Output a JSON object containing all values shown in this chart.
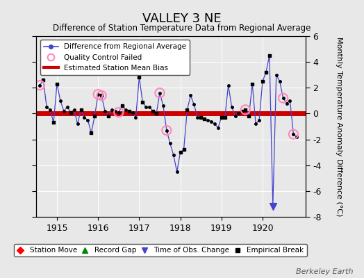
{
  "title": "VALLEY 3 NE",
  "subtitle": "Difference of Station Temperature Data from Regional Average",
  "ylabel": "Monthly Temperature Anomaly Difference (°C)",
  "bias_value": 0.05,
  "background_color": "#e8e8e8",
  "line_color": "#4444cc",
  "marker_color": "#000000",
  "bias_color": "#cc0000",
  "qc_color": "#ff88bb",
  "ylim": [
    -8,
    6
  ],
  "xlim_start": 1914.5,
  "xlim_end": 1921.05,
  "yticks": [
    -8,
    -6,
    -4,
    -2,
    0,
    2,
    4,
    6
  ],
  "xticks": [
    1915,
    1916,
    1917,
    1918,
    1919,
    1920
  ],
  "data_x": [
    1914.583,
    1914.667,
    1914.75,
    1914.833,
    1914.917,
    1915.0,
    1915.083,
    1915.167,
    1915.25,
    1915.333,
    1915.417,
    1915.5,
    1915.583,
    1915.667,
    1915.75,
    1915.833,
    1915.917,
    1916.0,
    1916.083,
    1916.167,
    1916.25,
    1916.333,
    1916.417,
    1916.5,
    1916.583,
    1916.667,
    1916.75,
    1916.833,
    1916.917,
    1917.0,
    1917.083,
    1917.167,
    1917.25,
    1917.333,
    1917.417,
    1917.5,
    1917.583,
    1917.667,
    1917.75,
    1917.833,
    1917.917,
    1918.0,
    1918.083,
    1918.167,
    1918.25,
    1918.333,
    1918.417,
    1918.5,
    1918.583,
    1918.667,
    1918.75,
    1918.833,
    1918.917,
    1919.0,
    1919.083,
    1919.167,
    1919.25,
    1919.333,
    1919.417,
    1919.5,
    1919.583,
    1919.667,
    1919.75,
    1919.833,
    1919.917,
    1920.0,
    1920.083,
    1920.167,
    1920.25,
    1920.333,
    1920.417,
    1920.5,
    1920.583,
    1920.667,
    1920.75,
    1920.833
  ],
  "data_y": [
    2.2,
    2.6,
    0.5,
    0.3,
    -0.7,
    2.3,
    1.0,
    0.2,
    0.5,
    0.1,
    0.3,
    -0.8,
    0.3,
    -0.3,
    -0.5,
    -1.5,
    -0.2,
    1.5,
    1.4,
    0.2,
    -0.2,
    0.3,
    0.2,
    0.1,
    0.6,
    0.3,
    0.2,
    0.1,
    -0.3,
    2.8,
    0.9,
    0.5,
    0.5,
    0.2,
    0.0,
    1.6,
    0.6,
    -1.3,
    -2.3,
    -3.2,
    -4.5,
    -3.0,
    -2.8,
    0.3,
    1.4,
    0.7,
    -0.3,
    -0.3,
    -0.4,
    -0.5,
    -0.6,
    -0.8,
    -1.1,
    -0.3,
    -0.3,
    2.2,
    0.5,
    -0.2,
    0.0,
    0.2,
    0.3,
    -0.2,
    2.3,
    -0.8,
    -0.5,
    2.5,
    3.2,
    4.5,
    -7.2,
    3.0,
    2.5,
    1.2,
    0.8,
    1.0,
    -1.6,
    -1.8
  ],
  "qc_failed_x": [
    1914.583,
    1916.0,
    1916.083,
    1916.5,
    1917.5,
    1917.667,
    1919.583,
    1920.5,
    1920.75
  ],
  "qc_failed_y": [
    2.2,
    1.5,
    1.4,
    0.1,
    1.6,
    -1.3,
    0.3,
    1.2,
    -1.6
  ],
  "break_x": [
    1914.667,
    1914.917,
    1915.0,
    1915.333,
    1915.583,
    1915.833,
    1915.917,
    1916.083,
    1916.25,
    1916.583,
    1916.75,
    1917.0,
    1917.083,
    1917.333,
    1917.417,
    1918.0,
    1918.083,
    1918.167,
    1918.5,
    1918.583,
    1919.0,
    1919.083,
    1919.5,
    1919.583,
    1919.667,
    1919.75,
    1920.0,
    1920.083,
    1920.167
  ],
  "break_y": [
    2.6,
    -0.7,
    2.3,
    0.1,
    0.3,
    -1.5,
    -0.2,
    1.4,
    -0.2,
    0.6,
    0.2,
    2.8,
    0.9,
    0.2,
    0.0,
    -3.0,
    -2.8,
    0.3,
    -0.3,
    -0.4,
    -0.3,
    -0.3,
    0.2,
    0.3,
    -0.2,
    2.3,
    2.5,
    3.2,
    4.5
  ],
  "time_obs_x": [
    1920.25
  ],
  "time_obs_y": [
    -7.2
  ],
  "watermark": "Berkeley Earth"
}
